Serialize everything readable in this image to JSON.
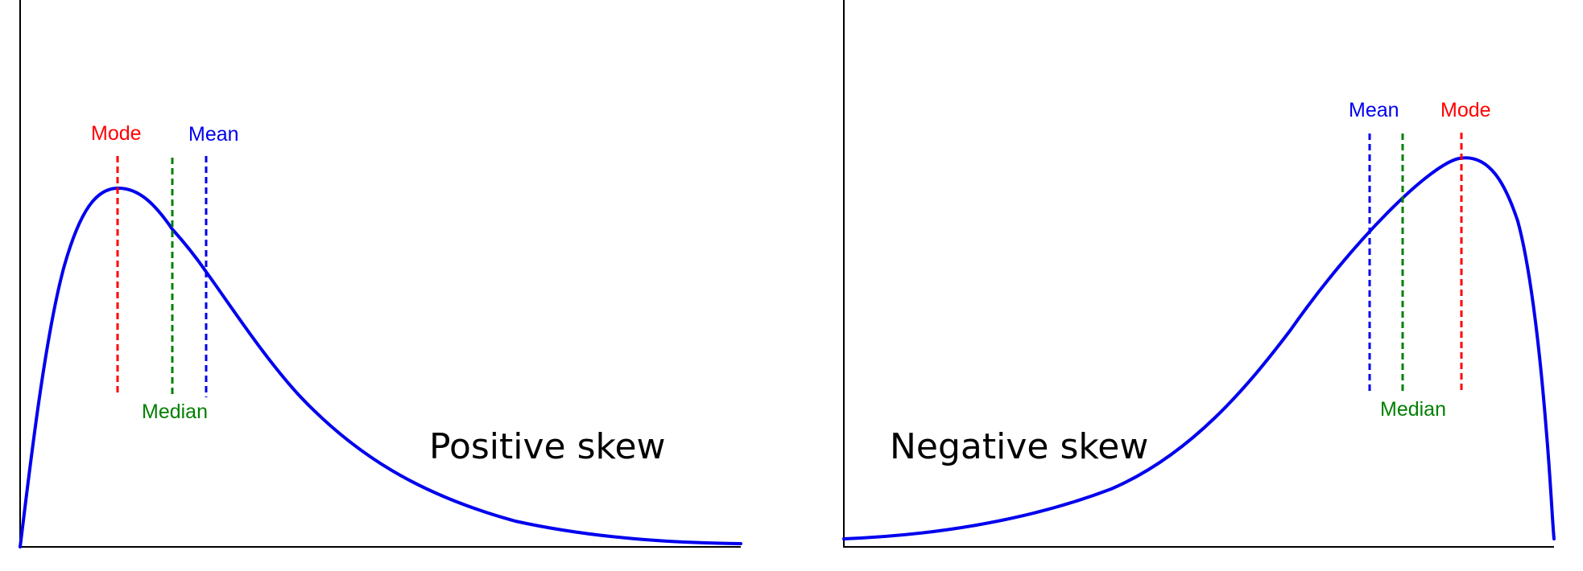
{
  "colors": {
    "curve": "#0000ee",
    "mode": "#ff0000",
    "median": "#008000",
    "mean": "#0000ee",
    "axis": "#000000"
  },
  "positive": {
    "title": "Positive skew",
    "mode_label": "Mode",
    "median_label": "Median",
    "mean_label": "Mean"
  },
  "negative": {
    "title": "Negative skew",
    "mode_label": "Mode",
    "median_label": "Median",
    "mean_label": "Mean"
  }
}
